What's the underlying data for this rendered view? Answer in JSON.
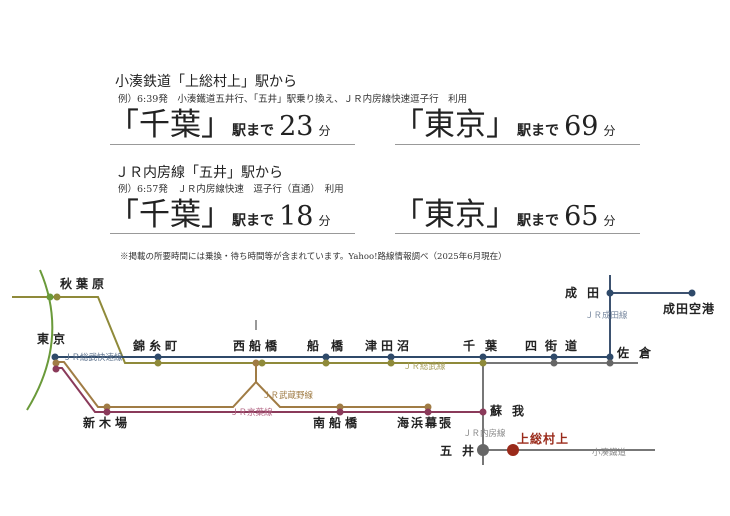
{
  "block1": {
    "heading": "小湊鉄道「上総村上」駅から",
    "example": "例）6:39発　小湊鐵道五井行、「五井」駅乗り換え、ＪＲ内房線快速逗子行　利用",
    "dest1": {
      "name": "「千葉」",
      "suffix": "駅まで",
      "minutes": "23",
      "unit": "分"
    },
    "dest2": {
      "name": "「東京」",
      "suffix": "駅まで",
      "minutes": "69",
      "unit": "分"
    }
  },
  "block2": {
    "heading": "ＪＲ内房線「五井」駅から",
    "example": "例）6:57発　ＪＲ内房線快速　逗子行（直通）　利用",
    "dest1": {
      "name": "「千葉」",
      "suffix": "駅まで",
      "minutes": "18",
      "unit": "分"
    },
    "dest2": {
      "name": "「東京」",
      "suffix": "駅まで",
      "minutes": "65",
      "unit": "分"
    }
  },
  "note": "※掲載の所要時間には乗換・待ち時間等が含まれています。Yahoo!路線情報調べ（2025年6月現在）",
  "map": {
    "stations": {
      "akihabara": "秋葉原",
      "tokyo": "東京",
      "kinshicho": "錦糸町",
      "nishifunabashi": "西船橋",
      "funabashi": "船橋",
      "tsudanuma": "津田沼",
      "chiba": "千葉",
      "yotsukaido": "四街道",
      "sakura": "佐倉",
      "narita": "成田",
      "narita_airport": "成田空港",
      "shinkiba": "新木場",
      "minamifunabashi": "南船橋",
      "kaihinmakuhari": "海浜幕張",
      "soga": "蘇我",
      "goi": "五井",
      "kazusamurakami": "上総村上"
    },
    "lines": {
      "sobu_rapid": "ＪＲ総武快速線",
      "musashino": "ＪＲ武蔵野線",
      "keiyo": "ＪＲ京葉線",
      "sobu": "ＪＲ総武線",
      "narita": "ＪＲ成田線",
      "uchibo": "ＪＲ内房線",
      "kominato": "小湊鐵道"
    },
    "colors": {
      "yamanote": "#6a9a3a",
      "sobu": "#8f8a3a",
      "sobu_rapid": "#2f4a6a",
      "musashino": "#a07c45",
      "keiyo": "#8a3a5a",
      "gray": "#777777",
      "highlight": "#9a2a1a"
    }
  }
}
